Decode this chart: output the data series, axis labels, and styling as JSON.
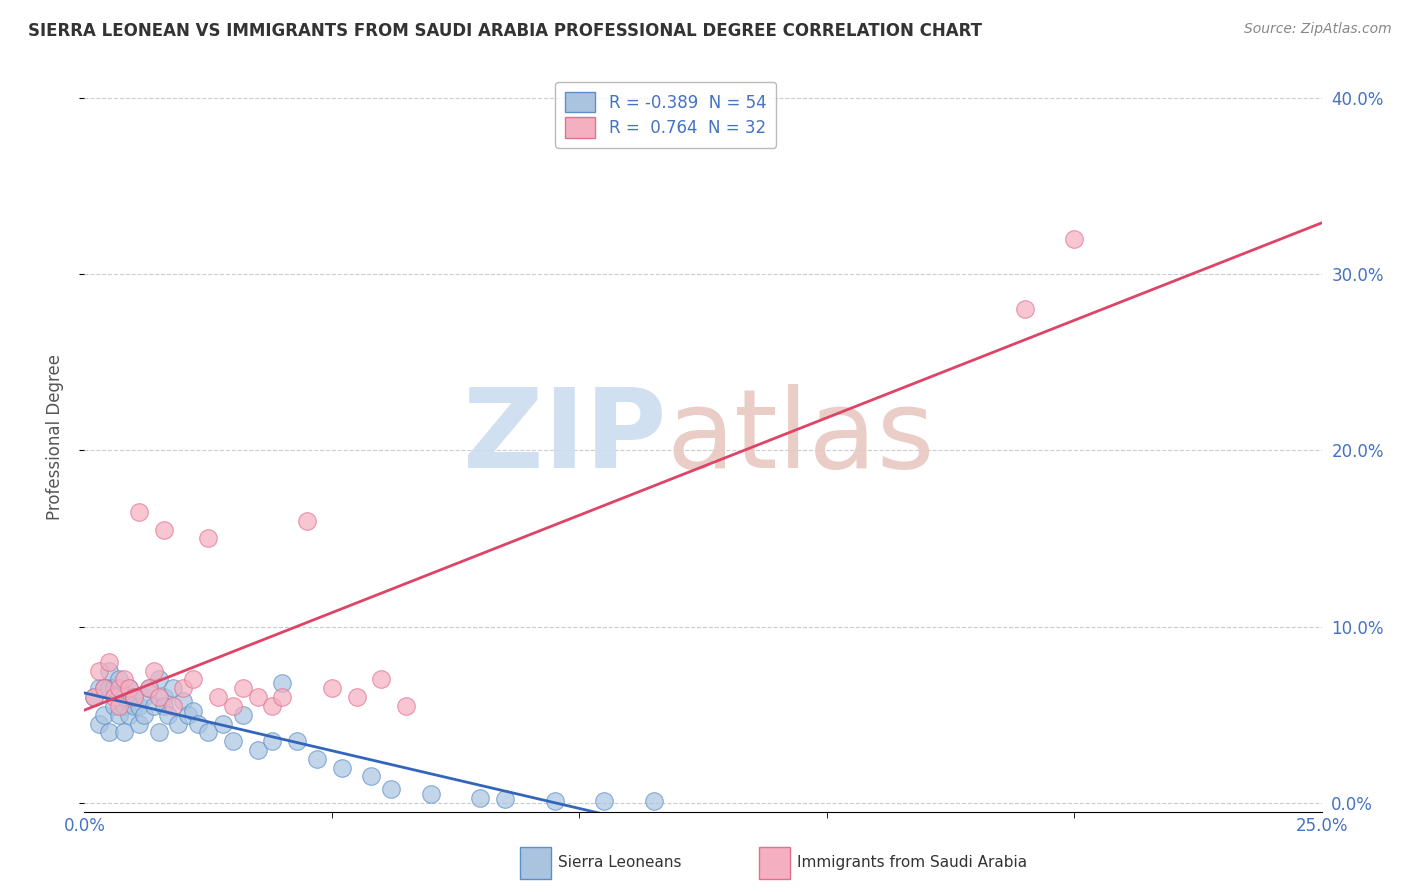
{
  "title": "SIERRA LEONEAN VS IMMIGRANTS FROM SAUDI ARABIA PROFESSIONAL DEGREE CORRELATION CHART",
  "source": "Source: ZipAtlas.com",
  "ylabel": "Professional Degree",
  "xlim": [
    0.0,
    0.25
  ],
  "ylim": [
    -0.005,
    0.42
  ],
  "xtick_major": [
    0.0,
    0.25
  ],
  "xtick_minor": [
    0.05,
    0.1,
    0.15,
    0.2
  ],
  "xtick_major_labels": [
    "0.0%",
    "25.0%"
  ],
  "yticks": [
    0.0,
    0.1,
    0.2,
    0.3,
    0.4
  ],
  "ytick_labels": [
    "0.0%",
    "10.0%",
    "20.0%",
    "30.0%",
    "40.0%"
  ],
  "blue_color": "#aac4e0",
  "pink_color": "#f4afc0",
  "blue_edge_color": "#5b8fc9",
  "pink_edge_color": "#e07090",
  "blue_line_color": "#3366bb",
  "pink_line_color": "#dd4466",
  "legend_blue_R": "-0.389",
  "legend_blue_N": "54",
  "legend_pink_R": "0.764",
  "legend_pink_N": "32",
  "blue_x": [
    0.002,
    0.003,
    0.003,
    0.004,
    0.004,
    0.005,
    0.005,
    0.005,
    0.006,
    0.006,
    0.007,
    0.007,
    0.008,
    0.008,
    0.008,
    0.009,
    0.009,
    0.01,
    0.01,
    0.011,
    0.011,
    0.012,
    0.012,
    0.013,
    0.014,
    0.015,
    0.015,
    0.016,
    0.016,
    0.017,
    0.018,
    0.019,
    0.02,
    0.021,
    0.022,
    0.023,
    0.025,
    0.028,
    0.03,
    0.032,
    0.035,
    0.038,
    0.04,
    0.043,
    0.047,
    0.052,
    0.058,
    0.062,
    0.07,
    0.08,
    0.085,
    0.095,
    0.105,
    0.115
  ],
  "blue_y": [
    0.06,
    0.065,
    0.045,
    0.065,
    0.05,
    0.065,
    0.04,
    0.075,
    0.055,
    0.065,
    0.05,
    0.07,
    0.055,
    0.06,
    0.04,
    0.065,
    0.05,
    0.055,
    0.06,
    0.045,
    0.055,
    0.06,
    0.05,
    0.065,
    0.055,
    0.07,
    0.04,
    0.06,
    0.055,
    0.05,
    0.065,
    0.045,
    0.058,
    0.05,
    0.052,
    0.045,
    0.04,
    0.045,
    0.035,
    0.05,
    0.03,
    0.035,
    0.068,
    0.035,
    0.025,
    0.02,
    0.015,
    0.008,
    0.005,
    0.003,
    0.002,
    0.001,
    0.001,
    0.001
  ],
  "pink_x": [
    0.002,
    0.003,
    0.004,
    0.005,
    0.006,
    0.007,
    0.007,
    0.008,
    0.009,
    0.01,
    0.011,
    0.013,
    0.014,
    0.015,
    0.016,
    0.018,
    0.02,
    0.022,
    0.025,
    0.027,
    0.03,
    0.032,
    0.035,
    0.038,
    0.04,
    0.045,
    0.05,
    0.055,
    0.06,
    0.065,
    0.19,
    0.2
  ],
  "pink_y": [
    0.06,
    0.075,
    0.065,
    0.08,
    0.06,
    0.065,
    0.055,
    0.07,
    0.065,
    0.06,
    0.165,
    0.065,
    0.075,
    0.06,
    0.155,
    0.055,
    0.065,
    0.07,
    0.15,
    0.06,
    0.055,
    0.065,
    0.06,
    0.055,
    0.06,
    0.16,
    0.065,
    0.06,
    0.07,
    0.055,
    0.28,
    0.32
  ],
  "background_color": "#ffffff",
  "grid_color": "#cccccc",
  "watermark_zip_color": "#ccddf0",
  "watermark_atlas_color": "#e8c8c0"
}
